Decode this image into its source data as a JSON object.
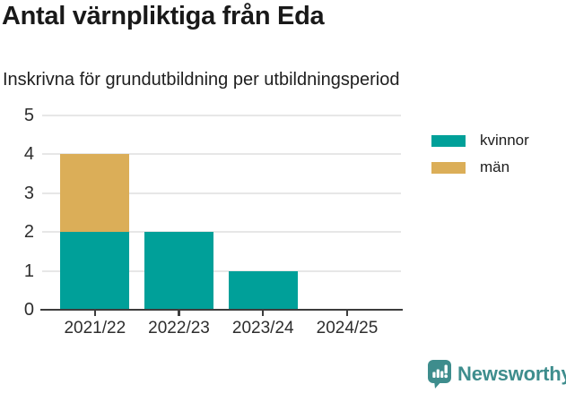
{
  "title": "Antal värnpliktiga från Eda",
  "subtitle": "Inskrivna för grundutbildning per utbildningsperiod",
  "chart_data": {
    "type": "bar",
    "stacked": true,
    "categories": [
      "2021/22",
      "2022/23",
      "2023/24",
      "2024/25"
    ],
    "series": [
      {
        "name": "kvinnor",
        "color": "#00A099",
        "values": [
          2,
          2,
          1,
          0
        ]
      },
      {
        "name": "män",
        "color": "#DBAE58",
        "values": [
          2,
          0,
          0,
          0
        ]
      }
    ],
    "title": "Antal värnpliktiga från Eda",
    "subtitle": "Inskrivna för grundutbildning per utbildningsperiod",
    "xlabel": "",
    "ylabel": "",
    "ylim": [
      0,
      5
    ],
    "yticks": [
      0,
      1,
      2,
      3,
      4,
      5
    ],
    "grid": true,
    "legend_position": "right"
  },
  "legend": {
    "items": [
      {
        "label": "kvinnor",
        "color": "#00A099"
      },
      {
        "label": "män",
        "color": "#DBAE58"
      }
    ]
  },
  "branding": {
    "logo_text": "Newsworthy",
    "logo_color": "#3E8D8D",
    "icon": "newsworthy-bubble-chart-icon"
  },
  "colors": {
    "axis": "#3d3d3d",
    "grid": "#e7e7e7",
    "kvinnor": "#00A099",
    "man": "#DBAE58"
  }
}
